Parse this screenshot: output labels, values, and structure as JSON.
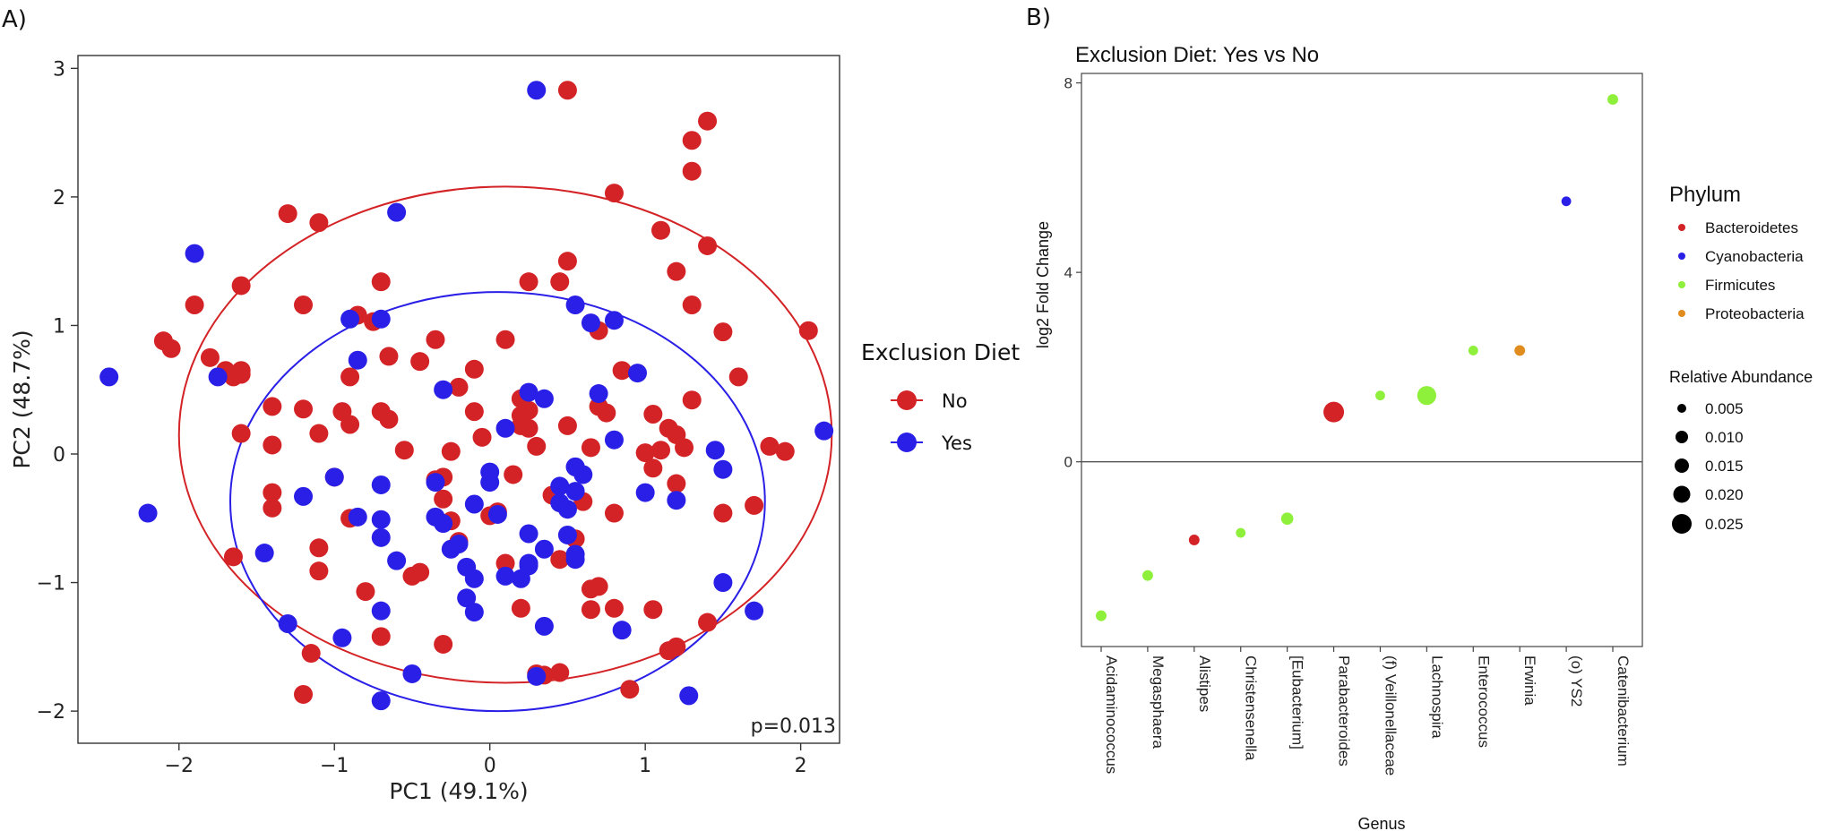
{
  "colors": {
    "no": "#d42326",
    "yes": "#2a1fe6",
    "bacteroidetes": "#d42326",
    "cyanobacteria": "#2a1fe6",
    "firmicutes": "#8ef03a",
    "proteobacteria": "#e08c1e"
  },
  "chart_data": [
    {
      "panel_label": "A)",
      "type": "scatter",
      "xlabel": "PC1 (49.1%)",
      "ylabel": "PC2 (48.7%)",
      "xlim": [
        -2.65,
        2.25
      ],
      "ylim": [
        -2.25,
        3.1
      ],
      "x_ticks": [
        -2,
        -1,
        0,
        1,
        2
      ],
      "x_tick_labels": [
        "−2",
        "−1",
        "0",
        "1",
        "2"
      ],
      "y_ticks": [
        -2,
        -1,
        0,
        1,
        2,
        3
      ],
      "y_tick_labels": [
        "−2",
        "−1",
        "0",
        "1",
        "2",
        "3"
      ],
      "annotation": "p=0.013",
      "legend": {
        "title": "Exclusion Diet",
        "entries": [
          {
            "label": "No",
            "color_key": "no"
          },
          {
            "label": "Yes",
            "color_key": "yes"
          }
        ]
      },
      "ellipses": [
        {
          "group": "No",
          "color_key": "no",
          "cx": 0.1,
          "cy": 0.15,
          "rx": 2.1,
          "ry": 1.93
        },
        {
          "group": "Yes",
          "color_key": "yes",
          "cx": 0.05,
          "cy": -0.37,
          "rx": 1.72,
          "ry": 1.63
        }
      ],
      "series": [
        {
          "name": "No",
          "color_key": "no",
          "points": [
            [
              0.5,
              2.83
            ],
            [
              1.3,
              2.44
            ],
            [
              1.4,
              2.59
            ],
            [
              1.3,
              2.2
            ],
            [
              0.8,
              2.03
            ],
            [
              1.1,
              1.74
            ],
            [
              1.4,
              1.62
            ],
            [
              1.2,
              1.42
            ],
            [
              1.3,
              1.16
            ],
            [
              1.5,
              0.95
            ],
            [
              1.6,
              0.6
            ],
            [
              1.3,
              0.42
            ],
            [
              -1.3,
              1.87
            ],
            [
              -1.1,
              1.8
            ],
            [
              -1.9,
              1.16
            ],
            [
              -2.1,
              0.88
            ],
            [
              -2.05,
              0.82
            ],
            [
              -1.8,
              0.75
            ],
            [
              -1.6,
              1.31
            ],
            [
              -1.7,
              0.65
            ],
            [
              -1.65,
              0.6
            ],
            [
              -1.6,
              0.65
            ],
            [
              -1.4,
              0.37
            ],
            [
              -1.4,
              0.07
            ],
            [
              -1.2,
              1.16
            ],
            [
              -1.2,
              0.35
            ],
            [
              -1.1,
              0.16
            ],
            [
              -1.0,
              -0.18
            ],
            [
              -0.95,
              0.33
            ],
            [
              -0.9,
              0.23
            ],
            [
              -0.9,
              0.6
            ],
            [
              -0.85,
              1.08
            ],
            [
              -0.75,
              1.03
            ],
            [
              -0.7,
              1.34
            ],
            [
              -0.65,
              0.76
            ],
            [
              -0.45,
              0.72
            ],
            [
              -0.35,
              0.89
            ],
            [
              -0.7,
              0.33
            ],
            [
              -0.65,
              0.27
            ],
            [
              -0.55,
              0.03
            ],
            [
              -0.35,
              -0.2
            ],
            [
              -0.3,
              -0.35
            ],
            [
              -0.2,
              0.52
            ],
            [
              -0.1,
              0.66
            ],
            [
              -0.1,
              0.33
            ],
            [
              -0.05,
              0.13
            ],
            [
              -0.0,
              -0.48
            ],
            [
              0.1,
              0.89
            ],
            [
              0.2,
              0.3
            ],
            [
              0.25,
              0.34
            ],
            [
              0.2,
              0.22
            ],
            [
              0.25,
              0.2
            ],
            [
              0.15,
              -0.16
            ],
            [
              0.3,
              0.06
            ],
            [
              0.4,
              -0.32
            ],
            [
              0.45,
              1.34
            ],
            [
              0.5,
              1.5
            ],
            [
              0.55,
              -0.66
            ],
            [
              0.6,
              -0.37
            ],
            [
              0.65,
              0.05
            ],
            [
              0.7,
              0.96
            ],
            [
              0.7,
              0.37
            ],
            [
              0.75,
              0.32
            ],
            [
              0.8,
              -0.46
            ],
            [
              0.8,
              -1.2
            ],
            [
              0.85,
              0.65
            ],
            [
              1.0,
              0.01
            ],
            [
              1.05,
              -0.11
            ],
            [
              1.05,
              0.31
            ],
            [
              1.1,
              0.03
            ],
            [
              1.15,
              0.2
            ],
            [
              1.2,
              0.15
            ],
            [
              1.2,
              -0.23
            ],
            [
              1.25,
              0.05
            ],
            [
              1.15,
              -1.53
            ],
            [
              1.05,
              -1.21
            ],
            [
              0.9,
              -1.83
            ],
            [
              1.5,
              -0.46
            ],
            [
              1.7,
              -0.4
            ],
            [
              1.8,
              0.06
            ],
            [
              1.9,
              0.02
            ],
            [
              2.05,
              0.96
            ],
            [
              0.7,
              -1.03
            ],
            [
              0.65,
              -1.21
            ],
            [
              0.3,
              -1.71
            ],
            [
              0.45,
              -1.7
            ],
            [
              0.35,
              -1.72
            ],
            [
              0.2,
              -1.2
            ],
            [
              0.45,
              -0.82
            ],
            [
              0.1,
              -0.85
            ],
            [
              -0.3,
              -1.48
            ],
            [
              -0.45,
              -0.92
            ],
            [
              -0.5,
              -0.95
            ],
            [
              -0.8,
              -1.07
            ],
            [
              -0.7,
              -1.42
            ],
            [
              -1.2,
              -1.87
            ],
            [
              -1.1,
              -0.73
            ],
            [
              -1.1,
              -0.91
            ],
            [
              -1.4,
              -0.42
            ],
            [
              -1.4,
              -0.3
            ],
            [
              -1.6,
              0.16
            ],
            [
              -1.65,
              -0.8
            ],
            [
              -1.15,
              -1.55
            ],
            [
              -0.25,
              -0.52
            ],
            [
              -0.2,
              -0.68
            ],
            [
              0.05,
              -0.45
            ],
            [
              0.2,
              0.43
            ],
            [
              -0.25,
              0.02
            ],
            [
              0.25,
              1.34
            ],
            [
              0.5,
              0.22
            ],
            [
              -0.3,
              -0.18
            ],
            [
              1.4,
              -1.31
            ],
            [
              -0.9,
              -0.5
            ],
            [
              1.2,
              -1.5
            ],
            [
              -1.6,
              0.62
            ],
            [
              0.65,
              -1.05
            ]
          ]
        },
        {
          "name": "Yes",
          "color_key": "yes",
          "points": [
            [
              0.3,
              2.83
            ],
            [
              -0.6,
              1.88
            ],
            [
              -1.9,
              1.56
            ],
            [
              -2.45,
              0.6
            ],
            [
              -1.75,
              0.6
            ],
            [
              -2.2,
              -0.46
            ],
            [
              -1.45,
              -0.77
            ],
            [
              -1.3,
              -1.32
            ],
            [
              -1.2,
              -0.33
            ],
            [
              -1.0,
              -0.18
            ],
            [
              -0.85,
              -0.49
            ],
            [
              -0.85,
              0.73
            ],
            [
              -0.9,
              1.05
            ],
            [
              -0.7,
              1.05
            ],
            [
              -0.7,
              -0.24
            ],
            [
              -0.7,
              -0.51
            ],
            [
              -0.7,
              -0.65
            ],
            [
              -0.6,
              -0.83
            ],
            [
              -0.35,
              -0.22
            ],
            [
              -0.35,
              -0.49
            ],
            [
              -0.3,
              0.5
            ],
            [
              -0.3,
              -0.54
            ],
            [
              -0.25,
              -0.74
            ],
            [
              -0.2,
              -0.7
            ],
            [
              -0.1,
              -0.39
            ],
            [
              -0.15,
              -0.88
            ],
            [
              -0.1,
              -0.97
            ],
            [
              -0.1,
              -1.23
            ],
            [
              0.0,
              -0.14
            ],
            [
              0.0,
              -0.22
            ],
            [
              0.05,
              -0.47
            ],
            [
              0.1,
              0.2
            ],
            [
              0.2,
              -0.97
            ],
            [
              0.25,
              -0.87
            ],
            [
              0.25,
              -0.62
            ],
            [
              0.25,
              0.48
            ],
            [
              0.3,
              -1.73
            ],
            [
              0.35,
              -1.34
            ],
            [
              0.35,
              -0.74
            ],
            [
              0.35,
              0.43
            ],
            [
              0.45,
              -0.25
            ],
            [
              0.5,
              -0.43
            ],
            [
              0.55,
              -0.1
            ],
            [
              0.55,
              -0.29
            ],
            [
              0.55,
              -0.82
            ],
            [
              0.55,
              -0.78
            ],
            [
              0.6,
              -0.16
            ],
            [
              0.55,
              1.16
            ],
            [
              0.65,
              1.02
            ],
            [
              0.7,
              0.47
            ],
            [
              0.8,
              0.11
            ],
            [
              0.8,
              1.04
            ],
            [
              0.95,
              0.63
            ],
            [
              1.0,
              -0.3
            ],
            [
              0.85,
              -1.37
            ],
            [
              1.2,
              -0.36
            ],
            [
              1.45,
              0.03
            ],
            [
              1.5,
              -0.12
            ],
            [
              1.5,
              -1.0
            ],
            [
              1.7,
              -1.22
            ],
            [
              2.15,
              0.18
            ],
            [
              1.28,
              -1.88
            ],
            [
              -0.7,
              -1.92
            ],
            [
              -0.5,
              -1.71
            ],
            [
              -0.95,
              -1.43
            ],
            [
              -0.7,
              -1.22
            ],
            [
              0.45,
              -0.38
            ],
            [
              0.55,
              -0.1
            ],
            [
              0.5,
              -0.63
            ],
            [
              0.25,
              -0.85
            ],
            [
              0.1,
              -0.95
            ],
            [
              -0.15,
              -1.12
            ]
          ]
        }
      ]
    },
    {
      "panel_label": "B)",
      "type": "scatter",
      "title": "Exclusion Diet: Yes vs No",
      "xlabel": "Genus",
      "ylabel": "log2 Fold Change",
      "ylim": [
        -3.9,
        8.2
      ],
      "y_ticks": [
        0,
        4,
        8
      ],
      "y_tick_labels": [
        "0",
        "4",
        "8"
      ],
      "zero_line": 0,
      "categories": [
        "Acidaminococcus",
        "Megasphaera",
        "Alistipes",
        "Christensenella",
        "[Eubacterium]",
        "Parabacteroides",
        "(f) Veillonellaceae",
        "Lachnospira",
        "Enterococcus",
        "Erwinia",
        "(o) YS2",
        "Catenibacterium"
      ],
      "points": [
        {
          "genus": "Acidaminococcus",
          "log2fc": -3.25,
          "abundance": 0.003,
          "phylum_key": "firmicutes"
        },
        {
          "genus": "Megasphaera",
          "log2fc": -2.4,
          "abundance": 0.003,
          "phylum_key": "firmicutes"
        },
        {
          "genus": "Alistipes",
          "log2fc": -1.65,
          "abundance": 0.003,
          "phylum_key": "bacteroidetes"
        },
        {
          "genus": "Christensenella",
          "log2fc": -1.5,
          "abundance": 0.002,
          "phylum_key": "firmicutes"
        },
        {
          "genus": "[Eubacterium]",
          "log2fc": -1.2,
          "abundance": 0.005,
          "phylum_key": "firmicutes"
        },
        {
          "genus": "Parabacteroides",
          "log2fc": 1.05,
          "abundance": 0.025,
          "phylum_key": "bacteroidetes"
        },
        {
          "genus": "(f) Veillonellaceae",
          "log2fc": 1.4,
          "abundance": 0.002,
          "phylum_key": "firmicutes"
        },
        {
          "genus": "Lachnospira",
          "log2fc": 1.4,
          "abundance": 0.02,
          "phylum_key": "firmicutes"
        },
        {
          "genus": "Enterococcus",
          "log2fc": 2.35,
          "abundance": 0.002,
          "phylum_key": "firmicutes"
        },
        {
          "genus": "Erwinia",
          "log2fc": 2.35,
          "abundance": 0.003,
          "phylum_key": "proteobacteria"
        },
        {
          "genus": "(o) YS2",
          "log2fc": 5.5,
          "abundance": 0.002,
          "phylum_key": "cyanobacteria"
        },
        {
          "genus": "Catenibacterium",
          "log2fc": 7.65,
          "abundance": 0.003,
          "phylum_key": "firmicutes"
        }
      ],
      "legend_phylum": {
        "title": "Phylum",
        "entries": [
          {
            "label": "Bacteroidetes",
            "color_key": "bacteroidetes"
          },
          {
            "label": "Cyanobacteria",
            "color_key": "cyanobacteria"
          },
          {
            "label": "Firmicutes",
            "color_key": "firmicutes"
          },
          {
            "label": "Proteobacteria",
            "color_key": "proteobacteria"
          }
        ]
      },
      "legend_size": {
        "title": "Relative Abundance",
        "entries": [
          {
            "label": "0.005",
            "value": 0.005
          },
          {
            "label": "0.010",
            "value": 0.01
          },
          {
            "label": "0.015",
            "value": 0.015
          },
          {
            "label": "0.020",
            "value": 0.02
          },
          {
            "label": "0.025",
            "value": 0.025
          }
        ]
      }
    }
  ]
}
